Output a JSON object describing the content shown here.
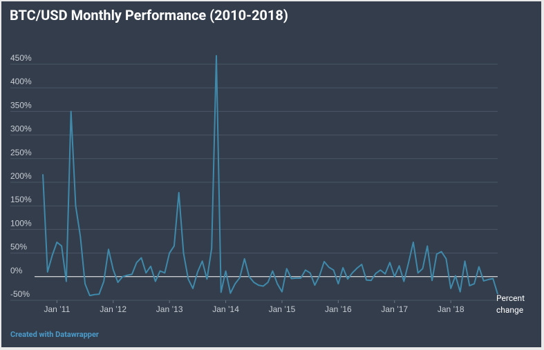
{
  "chart_data": {
    "type": "line",
    "title": "BTC/USD Monthly Performance (2010-2018)",
    "y_label": "Percent change",
    "footer": "Created with Datawrapper",
    "x": [
      "2010-10",
      "2010-11",
      "2010-12",
      "2011-01",
      "2011-02",
      "2011-03",
      "2011-04",
      "2011-05",
      "2011-06",
      "2011-07",
      "2011-08",
      "2011-09",
      "2011-10",
      "2011-11",
      "2011-12",
      "2012-01",
      "2012-02",
      "2012-03",
      "2012-04",
      "2012-05",
      "2012-06",
      "2012-07",
      "2012-08",
      "2012-09",
      "2012-10",
      "2012-11",
      "2012-12",
      "2013-01",
      "2013-02",
      "2013-03",
      "2013-04",
      "2013-05",
      "2013-06",
      "2013-07",
      "2013-08",
      "2013-09",
      "2013-10",
      "2013-11",
      "2013-12",
      "2014-01",
      "2014-02",
      "2014-03",
      "2014-04",
      "2014-05",
      "2014-06",
      "2014-07",
      "2014-08",
      "2014-09",
      "2014-10",
      "2014-11",
      "2014-12",
      "2015-01",
      "2015-02",
      "2015-03",
      "2015-04",
      "2015-05",
      "2015-06",
      "2015-07",
      "2015-08",
      "2015-09",
      "2015-10",
      "2015-11",
      "2015-12",
      "2016-01",
      "2016-02",
      "2016-03",
      "2016-04",
      "2016-05",
      "2016-06",
      "2016-07",
      "2016-08",
      "2016-09",
      "2016-10",
      "2016-11",
      "2016-12",
      "2017-01",
      "2017-02",
      "2017-03",
      "2017-04",
      "2017-05",
      "2017-06",
      "2017-07",
      "2017-08",
      "2017-09",
      "2017-10",
      "2017-11",
      "2017-12",
      "2018-01",
      "2018-02",
      "2018-03",
      "2018-04",
      "2018-05",
      "2018-06",
      "2018-07",
      "2018-08",
      "2018-09",
      "2018-10",
      "2018-11"
    ],
    "values": [
      217,
      10,
      45,
      73,
      65,
      -10,
      350,
      150,
      85,
      -15,
      -40,
      -38,
      -37,
      -10,
      58,
      15,
      -12,
      0,
      3,
      5,
      30,
      40,
      8,
      22,
      -10,
      12,
      8,
      50,
      65,
      178,
      50,
      -5,
      -25,
      10,
      33,
      -5,
      60,
      468,
      -33,
      12,
      -35,
      -15,
      -2,
      38,
      0,
      -12,
      -18,
      -20,
      -12,
      12,
      -15,
      -32,
      17,
      -4,
      -3,
      -3,
      14,
      8,
      -18,
      2,
      32,
      20,
      14,
      -15,
      19,
      -5,
      8,
      18,
      26,
      -7,
      -8,
      7,
      14,
      6,
      30,
      0,
      23,
      -10,
      30,
      73,
      8,
      17,
      65,
      -8,
      48,
      53,
      38,
      -25,
      2,
      -32,
      33,
      -19,
      -15,
      21,
      -9,
      -6,
      -4,
      -37
    ],
    "color": "#3f8aab",
    "xticks": [
      {
        "value": "2011-01",
        "label": "Jan ’11"
      },
      {
        "value": "2012-01",
        "label": "Jan ’12"
      },
      {
        "value": "2013-01",
        "label": "Jan ’13"
      },
      {
        "value": "2014-01",
        "label": "Jan ’14"
      },
      {
        "value": "2015-01",
        "label": "Jan ’15"
      },
      {
        "value": "2016-01",
        "label": "Jan ’16"
      },
      {
        "value": "2017-01",
        "label": "Jan ’17"
      },
      {
        "value": "2018-01",
        "label": "Jan ’18"
      }
    ],
    "ylim": [
      -50,
      450
    ],
    "yticks": [
      {
        "value": -50,
        "label": "-50%"
      },
      {
        "value": 0,
        "label": "0%"
      },
      {
        "value": 50,
        "label": "50%"
      },
      {
        "value": 100,
        "label": "100%"
      },
      {
        "value": 150,
        "label": "150%"
      },
      {
        "value": 200,
        "label": "200%"
      },
      {
        "value": 250,
        "label": "250%"
      },
      {
        "value": 300,
        "label": "300%"
      },
      {
        "value": 350,
        "label": "350%"
      },
      {
        "value": 400,
        "label": "400%"
      },
      {
        "value": 450,
        "label": "450%"
      }
    ],
    "grid": true
  }
}
